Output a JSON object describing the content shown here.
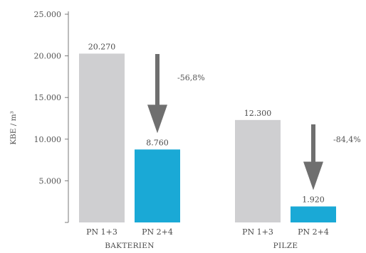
{
  "chart_data": {
    "type": "bar",
    "ylabel": "KBE / m³",
    "ylim": [
      0,
      25000
    ],
    "yticks": [
      5000,
      10000,
      15000,
      20000,
      25000
    ],
    "ytick_labels": [
      "5.000",
      "10.000",
      "15.000",
      "20.000",
      "25.000"
    ],
    "groups": [
      {
        "name": "BAKTERIEN",
        "bars": [
          {
            "label": "PN 1+3",
            "value": 20270,
            "value_label": "20.270",
            "color": "#cfcfd1"
          },
          {
            "label": "PN 2+4",
            "value": 8760,
            "value_label": "8.760",
            "color": "#1aa9d6"
          }
        ],
        "change_label": "-56,8%"
      },
      {
        "name": "PILZE",
        "bars": [
          {
            "label": "PN 1+3",
            "value": 12300,
            "value_label": "12.300",
            "color": "#cfcfd1"
          },
          {
            "label": "PN 2+4",
            "value": 1920,
            "value_label": "1.920",
            "color": "#1aa9d6"
          }
        ],
        "change_label": "-84,4%"
      }
    ],
    "arrow_color": "#6f6f6f",
    "axis_color": "#7a7a7a"
  }
}
